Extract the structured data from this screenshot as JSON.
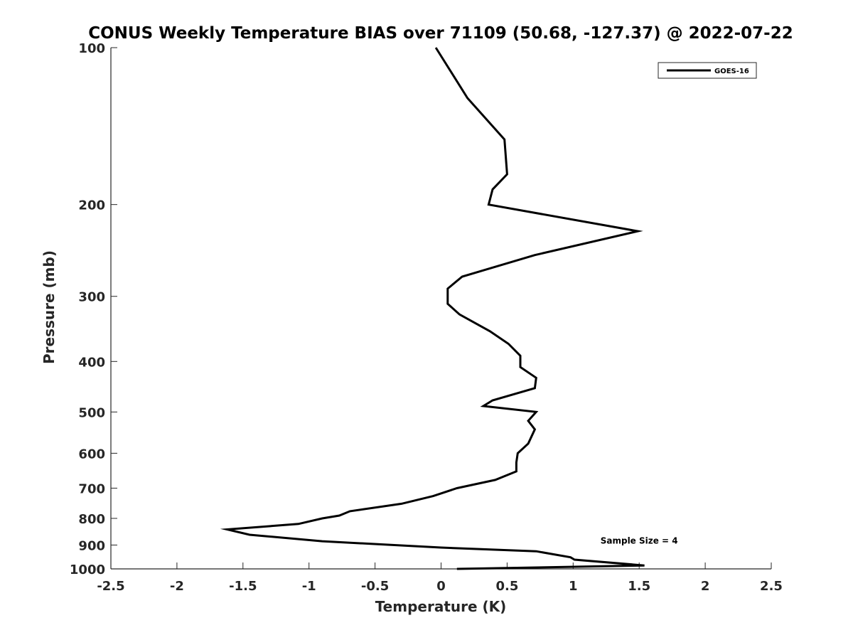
{
  "chart_data": {
    "type": "line",
    "title": "CONUS Weekly Temperature BIAS over 71109 (50.68, -127.37) @ 2022-07-22",
    "xlabel": "Temperature (K)",
    "ylabel": "Pressure (mb)",
    "xlim": [
      -2.5,
      2.5
    ],
    "ylim": [
      1000,
      100
    ],
    "y_scale": "log",
    "y_reversed": true,
    "x_ticks": [
      -2.5,
      -2,
      -1.5,
      -1,
      -0.5,
      0,
      0.5,
      1,
      1.5,
      2,
      2.5
    ],
    "x_tick_labels": [
      "-2.5",
      "-2",
      "-1.5",
      "-1",
      "-0.5",
      "0",
      "0.5",
      "1",
      "1.5",
      "2",
      "2.5"
    ],
    "y_ticks": [
      100,
      200,
      300,
      400,
      500,
      600,
      700,
      800,
      900,
      1000
    ],
    "y_tick_labels": [
      "100",
      "200",
      "300",
      "400",
      "500",
      "600",
      "700",
      "800",
      "900",
      "1000"
    ],
    "grid": false,
    "legend_position": "top-right",
    "series": [
      {
        "name": "GOES-16",
        "color": "#000000",
        "points": [
          {
            "x": -0.04,
            "y": 100
          },
          {
            "x": 0.2,
            "y": 125
          },
          {
            "x": 0.48,
            "y": 150
          },
          {
            "x": 0.5,
            "y": 175
          },
          {
            "x": 0.39,
            "y": 187
          },
          {
            "x": 0.36,
            "y": 200
          },
          {
            "x": 1.49,
            "y": 225
          },
          {
            "x": 0.71,
            "y": 250
          },
          {
            "x": 0.16,
            "y": 275
          },
          {
            "x": 0.05,
            "y": 290
          },
          {
            "x": 0.05,
            "y": 310
          },
          {
            "x": 0.14,
            "y": 325
          },
          {
            "x": 0.37,
            "y": 350
          },
          {
            "x": 0.51,
            "y": 370
          },
          {
            "x": 0.6,
            "y": 390
          },
          {
            "x": 0.6,
            "y": 410
          },
          {
            "x": 0.72,
            "y": 430
          },
          {
            "x": 0.71,
            "y": 450
          },
          {
            "x": 0.39,
            "y": 475
          },
          {
            "x": 0.32,
            "y": 487
          },
          {
            "x": 0.72,
            "y": 500
          },
          {
            "x": 0.66,
            "y": 520
          },
          {
            "x": 0.71,
            "y": 540
          },
          {
            "x": 0.66,
            "y": 575
          },
          {
            "x": 0.58,
            "y": 600
          },
          {
            "x": 0.57,
            "y": 625
          },
          {
            "x": 0.57,
            "y": 650
          },
          {
            "x": 0.41,
            "y": 675
          },
          {
            "x": 0.12,
            "y": 700
          },
          {
            "x": -0.06,
            "y": 725
          },
          {
            "x": -0.3,
            "y": 750
          },
          {
            "x": -0.69,
            "y": 775
          },
          {
            "x": -0.77,
            "y": 790
          },
          {
            "x": -0.9,
            "y": 800
          },
          {
            "x": -1.08,
            "y": 820
          },
          {
            "x": -1.62,
            "y": 840
          },
          {
            "x": -1.45,
            "y": 860
          },
          {
            "x": -0.9,
            "y": 885
          },
          {
            "x": 0.0,
            "y": 910
          },
          {
            "x": 0.72,
            "y": 925
          },
          {
            "x": 0.98,
            "y": 950
          },
          {
            "x": 1.01,
            "y": 960
          },
          {
            "x": 1.54,
            "y": 985
          },
          {
            "x": 0.12,
            "y": 1000
          }
        ]
      }
    ],
    "annotations": [
      {
        "text": "Sample Size = 4",
        "x": 1.5,
        "y": 900
      }
    ]
  }
}
